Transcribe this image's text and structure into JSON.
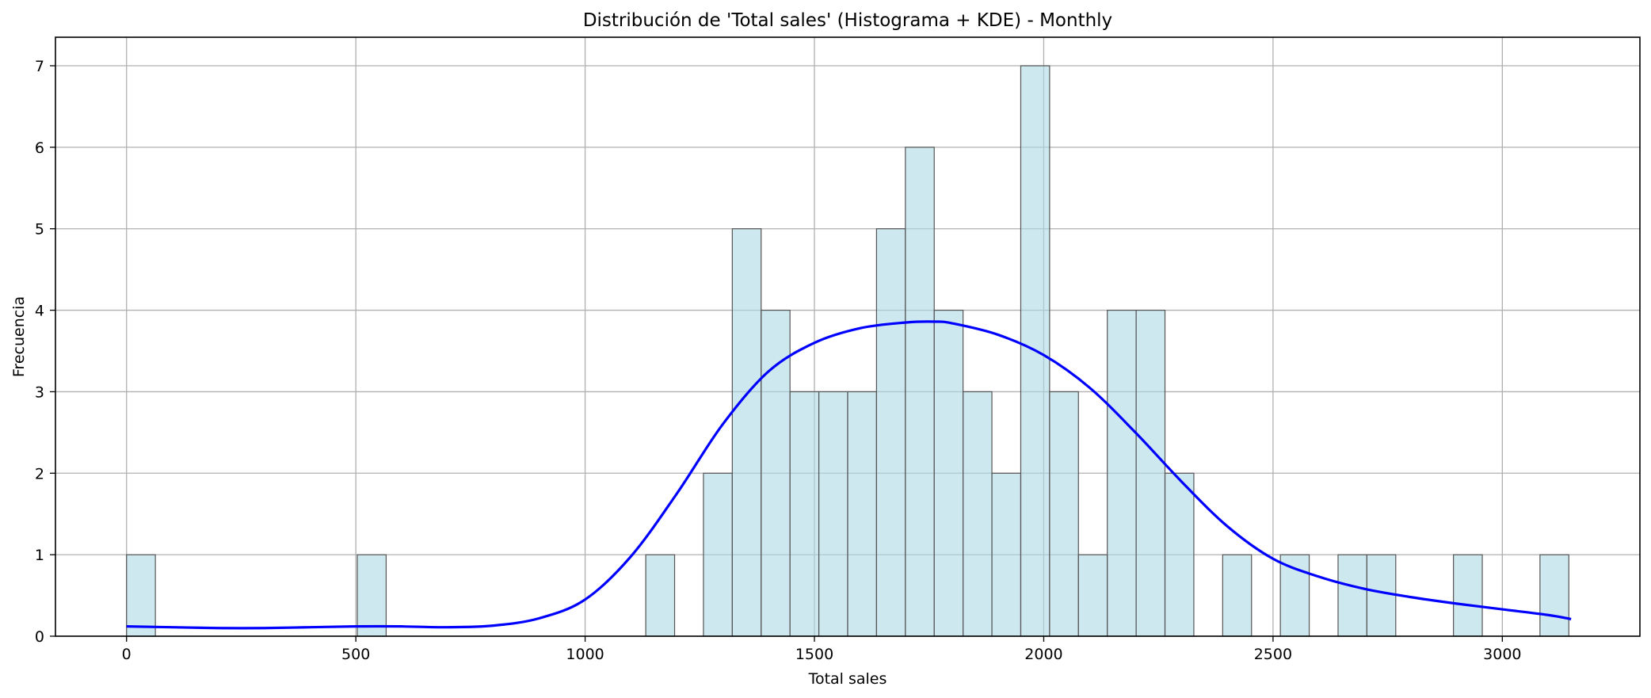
{
  "chart_data": {
    "type": "bar",
    "title": "Distribución de 'Total sales' (Histograma + KDE) - Monthly",
    "xlabel": "Total sales",
    "ylabel": "Frecuencia",
    "xlim": [
      -155,
      3300
    ],
    "ylim": [
      0,
      7.35
    ],
    "xticks": [
      0,
      500,
      1000,
      1500,
      2000,
      2500,
      3000
    ],
    "yticks": [
      0,
      1,
      2,
      3,
      4,
      5,
      6,
      7
    ],
    "grid": true,
    "bin_start": 0,
    "bin_width": 62.9,
    "bin_counts": [
      1,
      0,
      0,
      0,
      0,
      0,
      0,
      0,
      1,
      0,
      0,
      0,
      0,
      0,
      0,
      0,
      0,
      0,
      1,
      0,
      2,
      5,
      4,
      3,
      3,
      3,
      5,
      6,
      4,
      3,
      2,
      7,
      3,
      1,
      4,
      4,
      2,
      0,
      1,
      0,
      1,
      0,
      1,
      1,
      0,
      0,
      1,
      0,
      0,
      1
    ],
    "kde": {
      "x": [
        0,
        100,
        200,
        300,
        400,
        500,
        600,
        700,
        800,
        900,
        1000,
        1100,
        1200,
        1300,
        1400,
        1500,
        1600,
        1700,
        1760,
        1800,
        1900,
        2000,
        2100,
        2200,
        2300,
        2400,
        2500,
        2600,
        2700,
        2800,
        2900,
        3000,
        3100,
        3150
      ],
      "y": [
        0.12,
        0.11,
        0.1,
        0.1,
        0.11,
        0.12,
        0.12,
        0.11,
        0.13,
        0.22,
        0.45,
        0.98,
        1.75,
        2.6,
        3.25,
        3.6,
        3.78,
        3.85,
        3.86,
        3.84,
        3.7,
        3.45,
        3.05,
        2.5,
        1.9,
        1.35,
        0.95,
        0.73,
        0.58,
        0.48,
        0.4,
        0.33,
        0.26,
        0.21
      ]
    },
    "colors": {
      "bar_fill": "#add8e6",
      "bar_edge": "#555555",
      "kde_line": "#0000ff",
      "grid": "#b0b0b0"
    }
  }
}
